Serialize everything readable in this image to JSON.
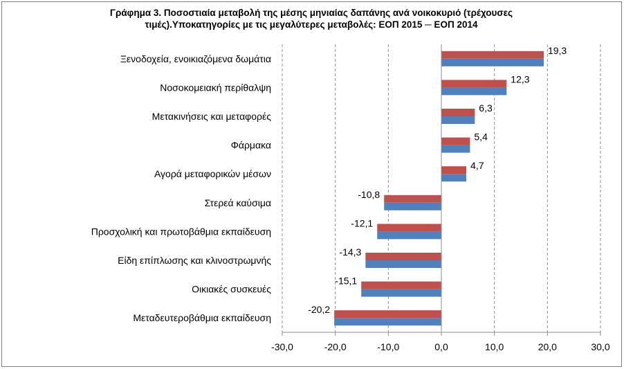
{
  "chart_data": {
    "type": "bar",
    "orientation": "horizontal",
    "title": "Γράφημα 3. Ποσοστιαία μεταβολή της μέσης μηνιαίας  δαπάνης ανά νοικοκυριό (τρέχουσες τιμές).Υποκατηγορίες με τις μεγαλύτερες μεταβολές: ΕΟΠ 2015 ─ ΕΟΠ 2014",
    "categories": [
      "Ξενοδοχεία, ενοικιαζόμενα δωμάτια",
      "Νοσοκομειακή περίθαλψη",
      "Μετακινήσεις και μεταφορές",
      "Φάρμακα",
      "Αγορά μεταφορικών μέσων",
      "Στερεά καύσιμα",
      "Προσχολική και πρωτοβάθμια εκπαίδευση",
      "Είδη επίπλωσης και κλινοστρωμνής",
      "Οικιακές συσκευές",
      "Μεταδευτεροβάθμια εκπαίδευση"
    ],
    "values": [
      19.3,
      12.3,
      6.3,
      5.4,
      4.7,
      -10.8,
      -12.1,
      -14.3,
      -15.1,
      -20.2
    ],
    "data_labels": [
      "19,3",
      "12,3",
      "6,3",
      "5,4",
      "4,7",
      "-10,8",
      "-12,1",
      "-14,3",
      "-15,1",
      "-20,2"
    ],
    "xlim": [
      -30,
      30
    ],
    "xticks": [
      -30,
      -20,
      -10,
      0,
      10,
      20,
      30
    ],
    "xtick_labels": [
      "-30,0",
      "-20,0",
      "-10,0",
      "0,0",
      "10,0",
      "20,0",
      "30,0"
    ],
    "grid": "vertical dashed",
    "legend": "none",
    "colors": {
      "bar_top": "#c0504d",
      "bar_bottom": "#4f81bd",
      "grid": "#8c8c8c",
      "axis": "#8c8c8c"
    }
  }
}
